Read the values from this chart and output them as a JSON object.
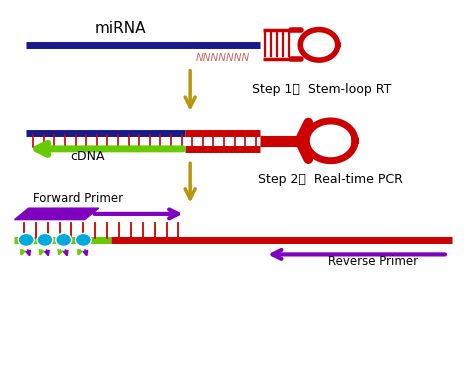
{
  "bg_color": "#ffffff",
  "mirna_color": "#1a1a8c",
  "red_color": "#cc0000",
  "green_color": "#66cc00",
  "purple_color": "#7f00bf",
  "tan_color": "#b8960c",
  "cyan_color": "#00aadd",
  "step1_text": "Step 1：  Stem-loop RT",
  "step2_text": "Step 2：  Real-time PCR",
  "mirna_label": "miRNA",
  "cdna_label": "cDNA",
  "forward_label": "Forward Primer",
  "reverse_label": "Reverse Primer",
  "nnnnn_label": "NNNNNNN"
}
